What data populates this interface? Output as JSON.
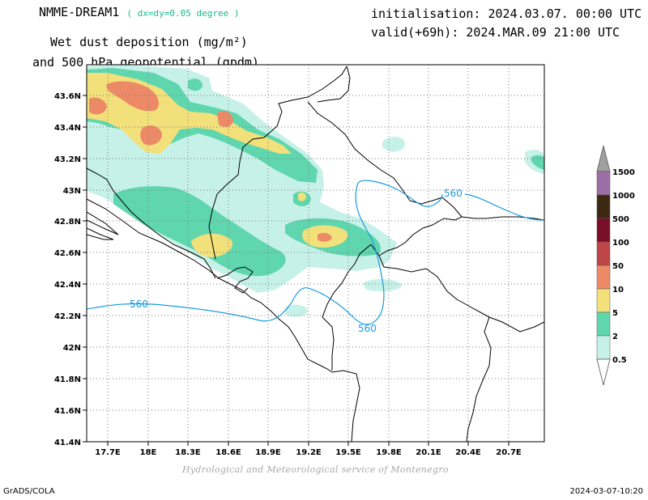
{
  "header": {
    "model": "NMME-DREAM1",
    "resolution": "( dx=dy=0.05 degree )",
    "title_line1": "Wet dust deposition (mg/m²)",
    "title_line2": "and 500 hPa geopotential (gpdm)",
    "init": "initialisation: 2024.03.07. 00:00 UTC",
    "valid": "valid(+69h): 2024.MAR.09 21:00 UTC"
  },
  "map": {
    "lon_ticks": [
      "17.7E",
      "18E",
      "18.3E",
      "18.6E",
      "18.9E",
      "19.2E",
      "19.5E",
      "19.8E",
      "20.1E",
      "20.4E",
      "20.7E"
    ],
    "lat_ticks": [
      "43.6N",
      "43.4N",
      "43.2N",
      "43N",
      "42.8N",
      "42.6N",
      "42.4N",
      "42.2N",
      "42N",
      "41.8N",
      "41.6N",
      "41.4N"
    ],
    "contour_labels": [
      "560",
      "560",
      "560"
    ],
    "contour_color": "#1a9be0"
  },
  "legend": {
    "levels": [
      "1500",
      "1000",
      "500",
      "100",
      "50",
      "10",
      "5",
      "2",
      "0.5"
    ],
    "colors": [
      "#9b6fa6",
      "#3d2814",
      "#7a0f2a",
      "#bf4646",
      "#ec8a68",
      "#f2e07a",
      "#5fd6ae",
      "#c6f1e8"
    ],
    "overflow_color": "#a0a0a0"
  },
  "footer": {
    "credit": "Hydrological and Meteorological service of Montenegro",
    "software": "GrADS/COLA",
    "timestamp": "2024-03-07-10:20"
  }
}
